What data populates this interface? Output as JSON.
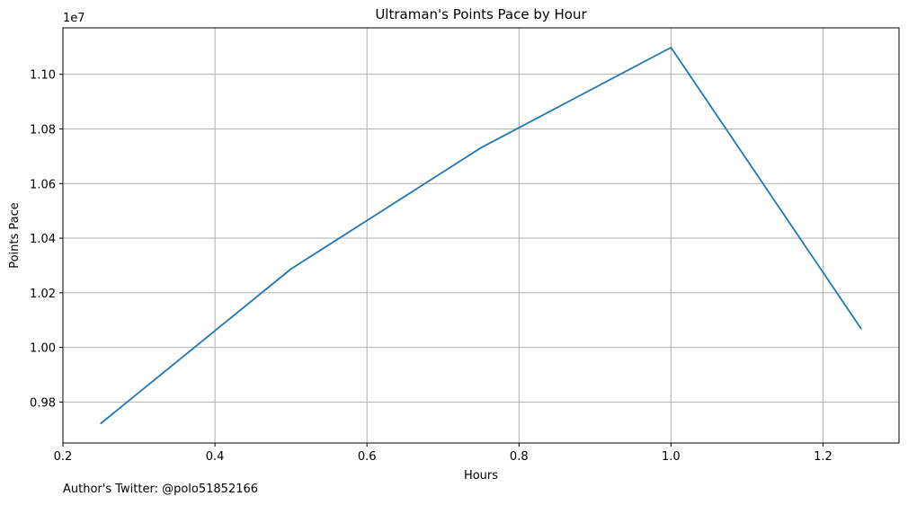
{
  "chart_data": {
    "type": "line",
    "title": "Ultraman's Points Pace by Hour",
    "xlabel": "Hours",
    "ylabel": "Points Pace",
    "y_offset_label": "1e7",
    "x": [
      0.25,
      0.5,
      0.75,
      1.0,
      1.25
    ],
    "series": [
      {
        "values": [
          9722000,
          10287000,
          10731000,
          11098000,
          10069000
        ],
        "color": "#1f77b4"
      }
    ],
    "xlim": [
      0.2,
      1.3
    ],
    "ylim": [
      9650000,
      11170000
    ],
    "x_ticks": [
      0.2,
      0.4,
      0.6,
      0.8,
      1.0,
      1.2
    ],
    "x_tick_labels": [
      "0.2",
      "0.4",
      "0.6",
      "0.8",
      "1.0",
      "1.2"
    ],
    "y_ticks": [
      9800000,
      10000000,
      10200000,
      10400000,
      10600000,
      10800000,
      11000000
    ],
    "y_tick_labels": [
      "0.98",
      "1.00",
      "1.02",
      "1.04",
      "1.06",
      "1.08",
      "1.10"
    ],
    "grid": true
  },
  "footer": {
    "note": "Author's Twitter: @polo51852166"
  }
}
